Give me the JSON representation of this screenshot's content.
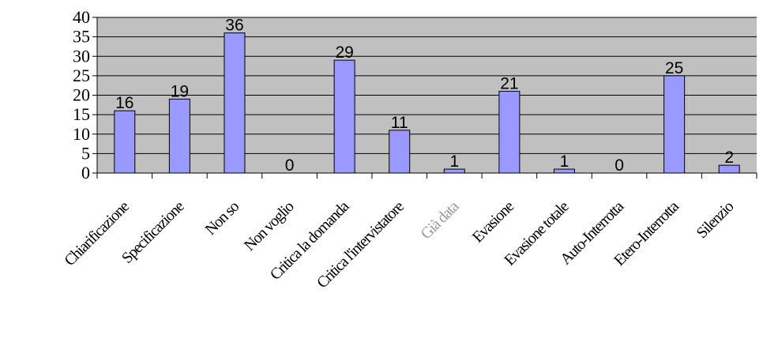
{
  "chart_data": {
    "type": "bar",
    "categories": [
      "Chiarificazione",
      "Specificazione",
      "Non so",
      "Non voglio",
      "Critica la domanda",
      "Critica l'intervistatore",
      "Già data",
      "Evasione",
      "Evasione totale",
      "Auto-Interrotta",
      "Etero-Interrotta",
      "Silenzio"
    ],
    "values": [
      16,
      19,
      36,
      0,
      29,
      11,
      1,
      21,
      1,
      0,
      25,
      2
    ],
    "data_labels": [
      "16",
      "19",
      "36",
      "0",
      "29",
      "11",
      "1",
      "21",
      "1",
      "0",
      "25",
      "2"
    ],
    "y_tick_labels": [
      "0",
      "5",
      "10",
      "15",
      "20",
      "25",
      "30",
      "35",
      "40"
    ],
    "ylim": [
      0,
      40
    ],
    "title": "",
    "xlabel": "",
    "ylabel": "",
    "grid": true,
    "legend": "none",
    "colors": {
      "bar_fill": "#9999ff",
      "bar_stroke": "#000000",
      "plot_background": "#c0c0c0",
      "gridline": "#000000",
      "faded_label": "#9a9a9a"
    }
  }
}
